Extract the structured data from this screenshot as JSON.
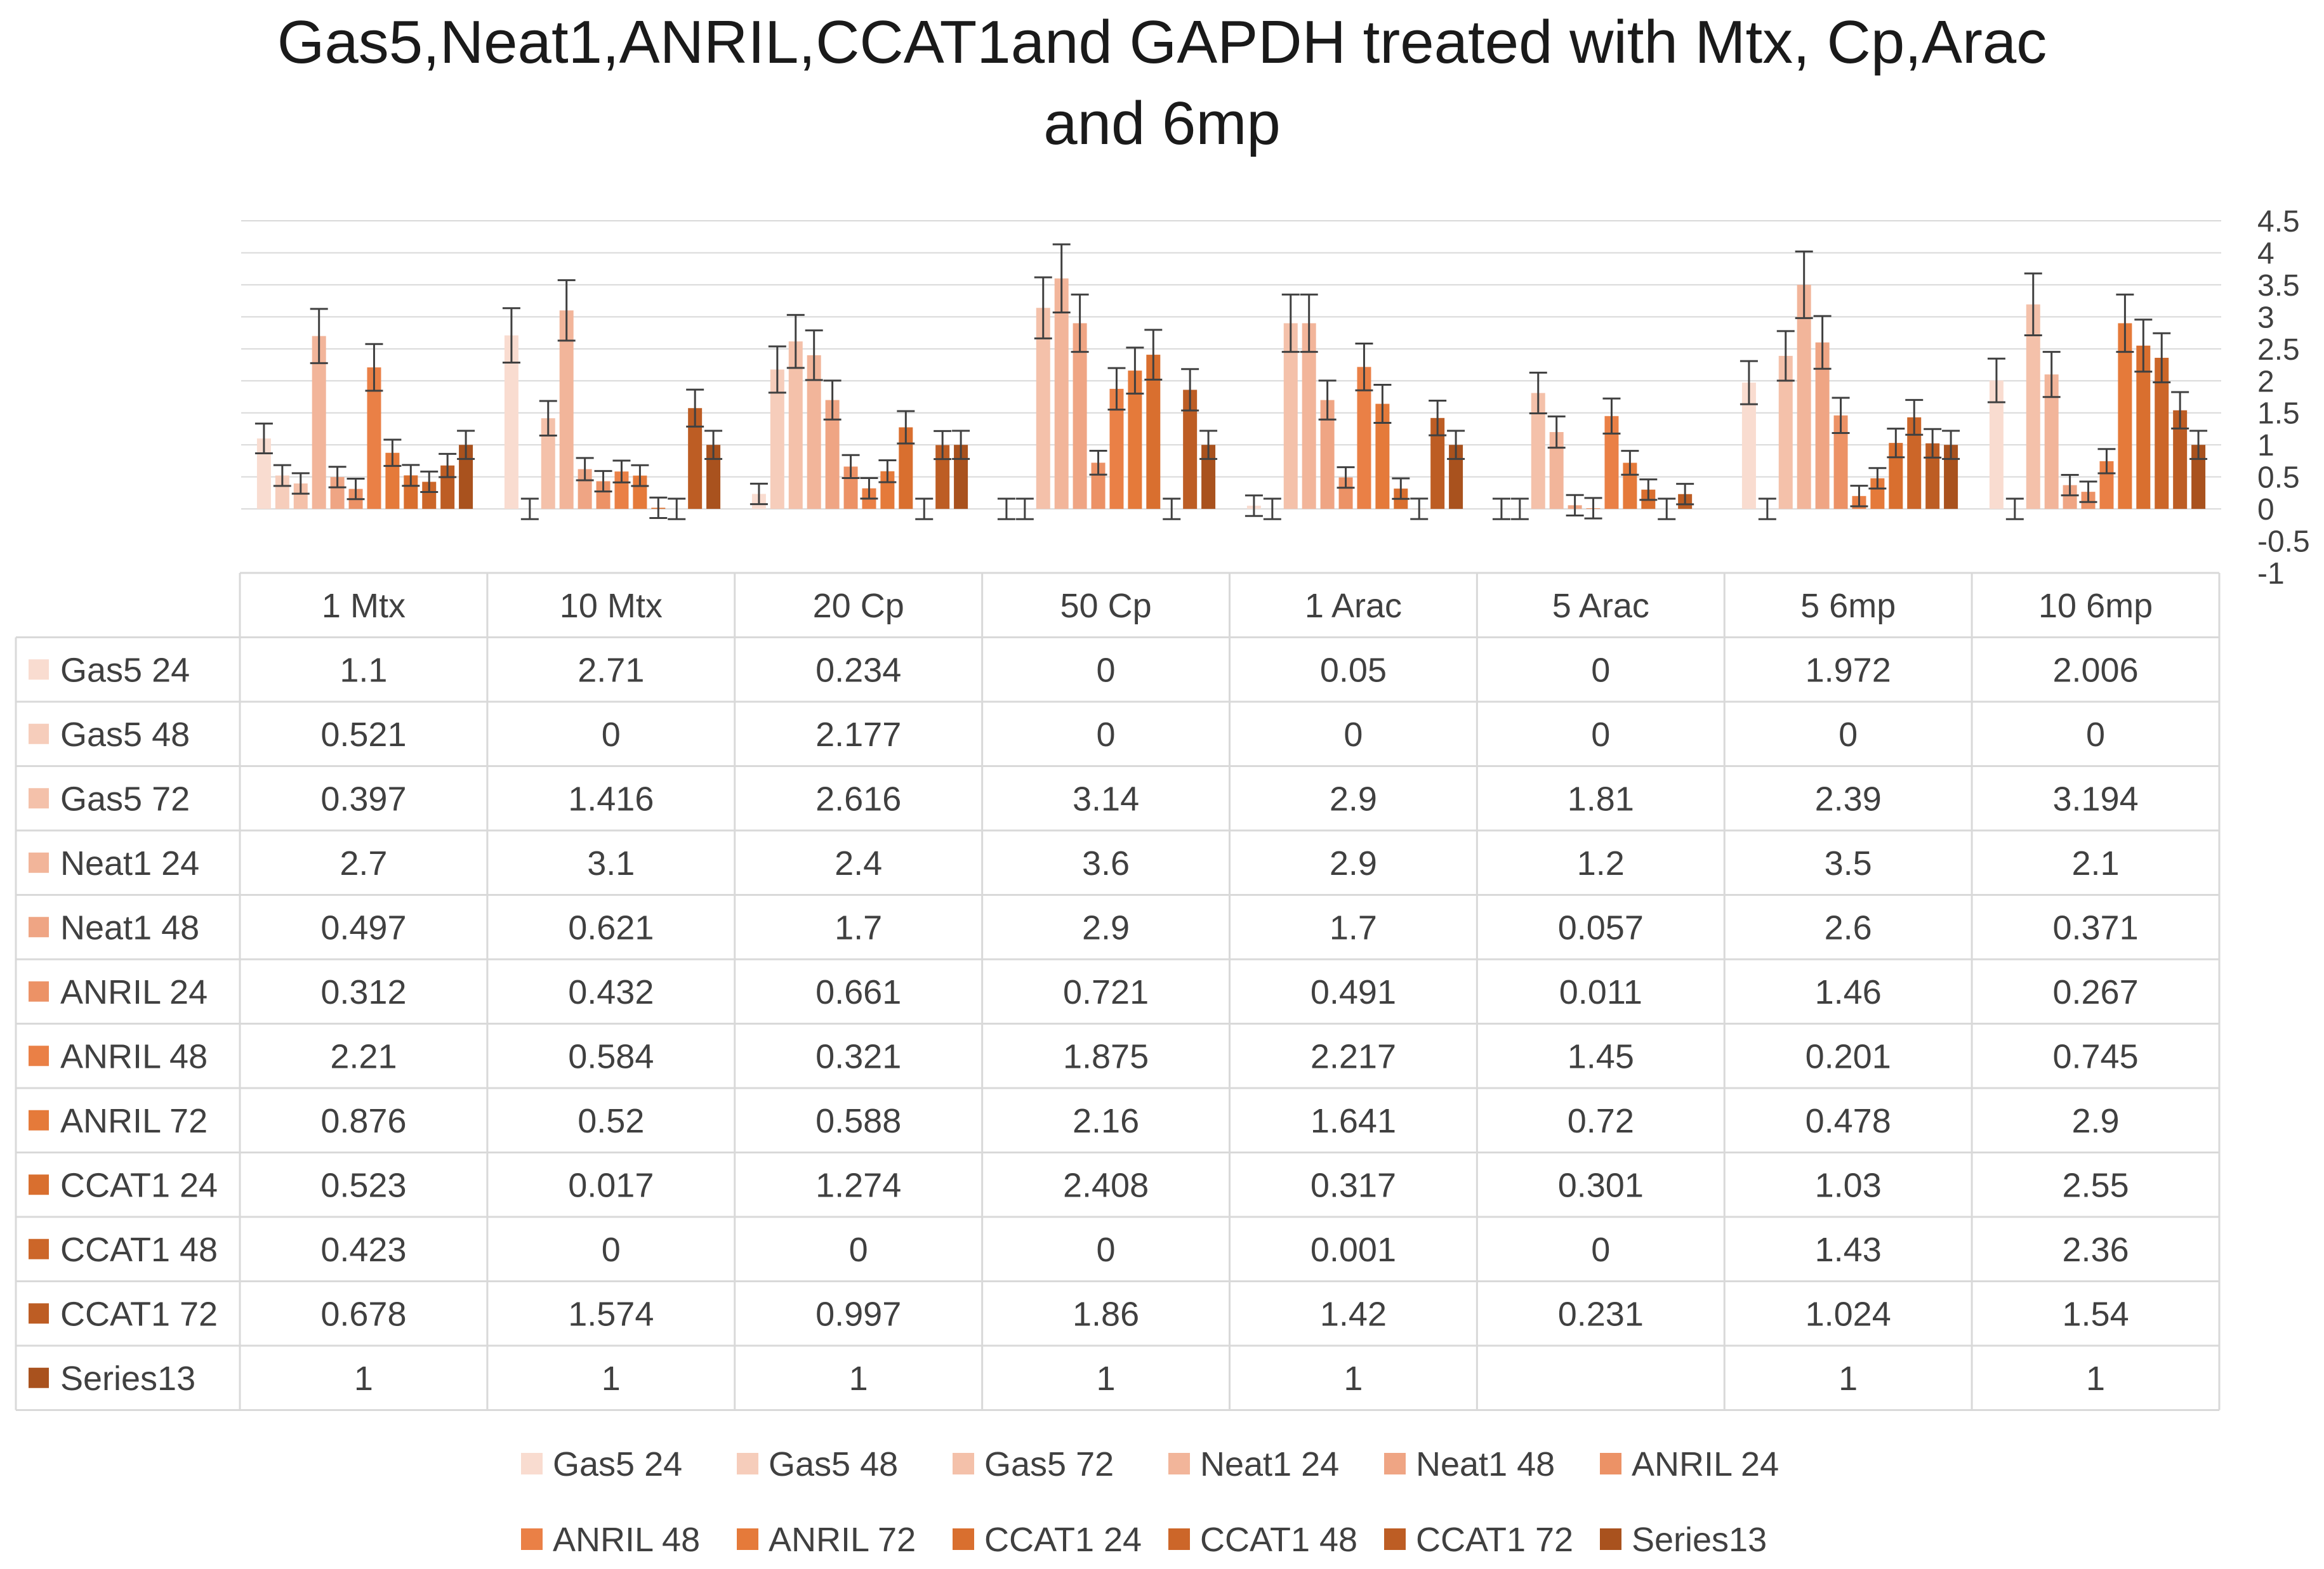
{
  "chart_data": {
    "type": "bar",
    "title_line1": "Gas5,Neat1,ANRIL,CCAT1and  GAPDH treated with Mtx, Cp,Arac",
    "title_line2": "and 6mp",
    "categories": [
      "1 Mtx",
      "10 Mtx",
      "20 Cp",
      "50 Cp",
      "1 Arac",
      "5 Arac",
      "5 6mp",
      "10 6mp"
    ],
    "ylim": [
      -1,
      4.5
    ],
    "y_ticks": [
      "4.5",
      "4",
      "3.5",
      "3",
      "2.5",
      "2",
      "1.5",
      "1",
      "0.5",
      "0",
      "-0.5",
      "-1"
    ],
    "y_tick_values": [
      4.5,
      4,
      3.5,
      3,
      2.5,
      2,
      1.5,
      1,
      0.5,
      0,
      -0.5,
      -1
    ],
    "y_axis_position": "right",
    "grid": true,
    "legend_position": "bottom",
    "data_table": true,
    "error_bars": true,
    "series": [
      {
        "name": "Gas5 24",
        "color": "#F9DCD0",
        "values": [
          1.1,
          2.71,
          0.234,
          0,
          0.05,
          0,
          1.972,
          2.006
        ],
        "labels": [
          "1.1",
          "2.71",
          "0.234",
          "0",
          "0.05",
          "0",
          "1.972",
          "2.006"
        ]
      },
      {
        "name": "Gas5 48",
        "color": "#F6CDBB",
        "values": [
          0.521,
          0,
          2.177,
          0,
          0,
          0,
          0,
          0
        ],
        "labels": [
          "0.521",
          "0",
          "2.177",
          "0",
          "0",
          "0",
          "0",
          "0"
        ]
      },
      {
        "name": "Gas5 72",
        "color": "#F4C1AA",
        "values": [
          0.397,
          1.416,
          2.616,
          3.14,
          2.9,
          1.81,
          2.39,
          3.194
        ],
        "labels": [
          "0.397",
          "1.416",
          "2.616",
          "3.14",
          "2.9",
          "1.81",
          "2.39",
          "3.194"
        ]
      },
      {
        "name": "Neat1  24",
        "color": "#F2B59A",
        "values": [
          2.7,
          3.1,
          2.4,
          3.6,
          2.9,
          1.2,
          3.5,
          2.1
        ],
        "labels": [
          "2.7",
          "3.1",
          "2.4",
          "3.6",
          "2.9",
          "1.2",
          "3.5",
          "2.1"
        ]
      },
      {
        "name": "Neat1   48",
        "color": "#EFA584",
        "values": [
          0.497,
          0.621,
          1.7,
          2.9,
          1.7,
          0.057,
          2.6,
          0.371
        ],
        "labels": [
          "0.497",
          "0.621",
          "1.7",
          "2.9",
          "1.7",
          "0.057",
          "2.6",
          "0.371"
        ]
      },
      {
        "name": "ANRIL  24",
        "color": "#EC9266",
        "values": [
          0.312,
          0.432,
          0.661,
          0.721,
          0.491,
          0.011,
          1.46,
          0.267
        ],
        "labels": [
          "0.312",
          "0.432",
          "0.661",
          "0.721",
          "0.491",
          "0.011",
          "1.46",
          "0.267"
        ]
      },
      {
        "name": "ANRIL  48",
        "color": "#EA8046",
        "values": [
          2.21,
          0.584,
          0.321,
          1.875,
          2.217,
          1.45,
          0.201,
          0.745
        ],
        "labels": [
          "2.21",
          "0.584",
          "0.321",
          "1.875",
          "2.217",
          "1.45",
          "0.201",
          "0.745"
        ]
      },
      {
        "name": "ANRIL  72",
        "color": "#E57A3A",
        "values": [
          0.876,
          0.52,
          0.588,
          2.16,
          1.641,
          0.72,
          0.478,
          2.9
        ],
        "labels": [
          "0.876",
          "0.52",
          "0.588",
          "2.16",
          "1.641",
          "0.72",
          "0.478",
          "2.9"
        ]
      },
      {
        "name": "CCAT1 24",
        "color": "#D96F2F",
        "values": [
          0.523,
          0.017,
          1.274,
          2.408,
          0.317,
          0.301,
          1.03,
          2.55
        ],
        "labels": [
          "0.523",
          "0.017",
          "1.274",
          "2.408",
          "0.317",
          "0.301",
          "1.03",
          "2.55"
        ]
      },
      {
        "name": "CCAT1 48",
        "color": "#CC6629",
        "values": [
          0.423,
          0,
          0,
          0,
          0.001,
          0,
          1.43,
          2.36
        ],
        "labels": [
          "0.423",
          "0",
          "0",
          "0",
          "0.001",
          "0",
          "1.43",
          "2.36"
        ]
      },
      {
        "name": "CCAT1 72",
        "color": "#BD5D24",
        "values": [
          0.678,
          1.574,
          0.997,
          1.86,
          1.42,
          0.231,
          1.024,
          1.54
        ],
        "labels": [
          "0.678",
          "1.574",
          "0.997",
          "1.86",
          "1.42",
          "0.231",
          "1.024",
          "1.54"
        ]
      },
      {
        "name": "Series13",
        "color": "#A9521E",
        "values": [
          1,
          1,
          1,
          1,
          1,
          null,
          1,
          1
        ],
        "labels": [
          "1",
          "1",
          "1",
          "1",
          "1",
          "",
          "1",
          "1"
        ]
      }
    ]
  }
}
